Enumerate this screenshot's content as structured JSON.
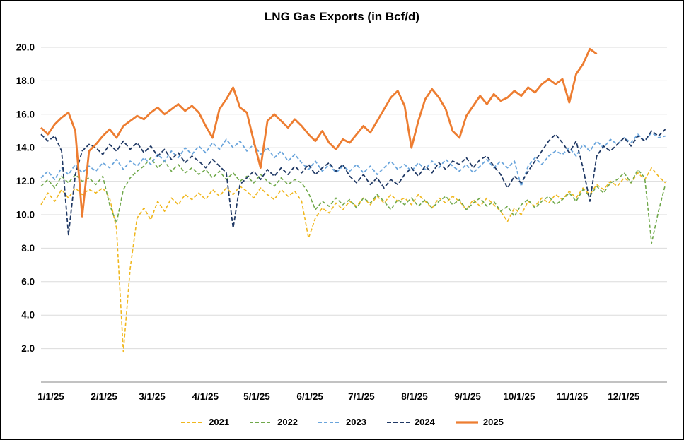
{
  "page": {
    "background": "#ffffff",
    "border_color": "#000000"
  },
  "chart_data": {
    "type": "line",
    "title": "LNG Gas Exports (in Bcf/d)",
    "xlabel": "",
    "ylabel": "",
    "legend_position": "bottom",
    "grid": "horizontal-only",
    "grid_color": "#dbdbdb",
    "axis_color": "#9e9e9e",
    "text_color": "#000000",
    "x_tick_labels": [
      "1/1/25",
      "2/1/25",
      "3/1/25",
      "4/1/25",
      "5/1/25",
      "6/1/25",
      "7/1/25",
      "8/1/25",
      "9/1/25",
      "10/1/25",
      "11/1/25",
      "12/1/25"
    ],
    "x_tick_days": [
      0,
      31,
      59,
      90,
      120,
      151,
      181,
      212,
      243,
      273,
      304,
      334
    ],
    "x_range_days": [
      0,
      365
    ],
    "ylim": [
      0,
      20.8
    ],
    "y_ticks": [
      2,
      4,
      6,
      8,
      10,
      12,
      14,
      16,
      18,
      20
    ],
    "series": [
      {
        "name": "2021",
        "color": "#f0b71e",
        "dash": "5 3",
        "width": 1.6,
        "start_day": 0,
        "step_days": 4,
        "values": [
          10.6,
          11.3,
          10.8,
          11.5,
          11.0,
          11.6,
          11.2,
          11.5,
          11.3,
          11.6,
          11.0,
          9.2,
          1.8,
          6.8,
          9.8,
          10.4,
          9.7,
          10.8,
          10.2,
          11.0,
          10.6,
          11.2,
          10.9,
          11.3,
          10.9,
          11.5,
          11.1,
          11.6,
          11.2,
          11.7,
          11.4,
          11.0,
          11.6,
          11.2,
          10.9,
          11.5,
          11.1,
          11.4,
          10.8,
          8.6,
          9.8,
          10.4,
          10.1,
          10.7,
          10.3,
          10.8,
          10.5,
          11.0,
          10.6,
          11.1,
          10.7,
          11.2,
          10.8,
          11.0,
          10.6,
          11.2,
          10.8,
          10.4,
          11.0,
          10.7,
          11.1,
          10.8,
          10.3,
          10.9,
          10.5,
          11.0,
          10.6,
          10.2,
          9.6,
          10.4,
          10.0,
          10.8,
          10.5,
          11.0,
          10.7,
          11.2,
          10.9,
          11.4,
          11.0,
          11.6,
          11.2,
          11.8,
          11.5,
          12.0,
          11.7,
          12.2,
          11.9,
          12.5,
          12.1,
          12.8,
          12.3,
          11.9
        ]
      },
      {
        "name": "2022",
        "color": "#6fa84a",
        "dash": "5 3",
        "width": 1.6,
        "start_day": 0,
        "step_days": 4,
        "values": [
          11.7,
          12.1,
          11.6,
          12.3,
          11.9,
          12.4,
          12.0,
          12.2,
          11.8,
          12.3,
          10.6,
          9.5,
          11.5,
          12.2,
          12.6,
          12.9,
          13.4,
          12.8,
          13.2,
          12.6,
          13.0,
          12.5,
          12.8,
          12.4,
          12.7,
          12.2,
          12.6,
          12.1,
          12.5,
          12.0,
          12.3,
          11.9,
          12.4,
          12.0,
          11.7,
          12.2,
          11.8,
          12.1,
          11.9,
          11.3,
          10.3,
          10.8,
          10.5,
          11.0,
          10.6,
          10.9,
          10.4,
          11.0,
          10.7,
          11.2,
          10.8,
          10.3,
          10.9,
          10.6,
          11.0,
          10.5,
          10.9,
          10.4,
          10.8,
          11.1,
          10.6,
          10.9,
          10.3,
          10.7,
          11.0,
          10.5,
          10.8,
          10.2,
          10.5,
          9.9,
          10.6,
          10.9,
          10.4,
          10.8,
          11.1,
          10.6,
          10.9,
          11.3,
          10.8,
          11.5,
          11.1,
          11.7,
          11.3,
          11.9,
          12.1,
          12.5,
          11.9,
          12.7,
          12.2,
          8.3,
          10.2,
          11.8
        ]
      },
      {
        "name": "2023",
        "color": "#6aa5dc",
        "dash": "5 3",
        "width": 1.8,
        "start_day": 0,
        "step_days": 4,
        "values": [
          12.2,
          12.6,
          12.1,
          12.8,
          12.4,
          13.0,
          12.5,
          12.9,
          12.6,
          13.1,
          12.8,
          13.3,
          12.7,
          13.2,
          12.9,
          13.4,
          13.0,
          13.6,
          13.2,
          13.8,
          13.4,
          14.0,
          13.6,
          14.1,
          13.7,
          14.3,
          13.9,
          14.5,
          14.0,
          14.4,
          13.8,
          14.2,
          13.6,
          14.0,
          13.4,
          13.8,
          13.2,
          13.6,
          13.1,
          12.7,
          13.2,
          12.6,
          13.0,
          12.5,
          12.9,
          12.6,
          13.0,
          12.5,
          12.9,
          12.4,
          12.8,
          13.2,
          12.7,
          13.0,
          12.6,
          13.1,
          12.7,
          13.2,
          12.8,
          13.3,
          12.9,
          12.6,
          13.0,
          12.5,
          12.9,
          13.3,
          12.8,
          13.2,
          12.8,
          13.2,
          11.7,
          12.9,
          13.4,
          13.0,
          13.5,
          13.8,
          13.6,
          14.0,
          13.5,
          14.2,
          13.8,
          14.4,
          14.0,
          14.5,
          14.2,
          14.6,
          14.3,
          14.8,
          14.4,
          14.9,
          14.6,
          14.7
        ]
      },
      {
        "name": "2024",
        "color": "#1f3864",
        "dash": "6 3",
        "width": 1.8,
        "start_day": 0,
        "step_days": 4,
        "values": [
          14.8,
          14.4,
          14.7,
          13.8,
          8.8,
          12.4,
          13.8,
          14.2,
          14.0,
          13.6,
          14.2,
          13.8,
          14.4,
          13.9,
          14.3,
          13.7,
          14.1,
          13.5,
          13.9,
          13.3,
          13.7,
          13.1,
          13.5,
          13.2,
          12.8,
          13.3,
          12.9,
          12.5,
          9.2,
          11.8,
          12.2,
          12.6,
          12.1,
          12.7,
          12.3,
          12.8,
          12.4,
          12.9,
          12.5,
          13.0,
          12.4,
          12.8,
          13.1,
          12.6,
          13.0,
          12.3,
          11.9,
          12.4,
          11.8,
          12.2,
          11.6,
          12.1,
          11.8,
          12.4,
          12.8,
          12.3,
          12.9,
          12.5,
          13.1,
          12.7,
          13.2,
          13.0,
          13.4,
          12.8,
          13.3,
          13.5,
          12.9,
          12.4,
          11.6,
          12.3,
          11.9,
          12.6,
          13.2,
          13.8,
          14.4,
          14.8,
          14.3,
          13.7,
          14.4,
          12.8,
          10.8,
          13.5,
          14.1,
          13.8,
          14.2,
          14.6,
          14.1,
          14.7,
          14.4,
          15.0,
          14.7,
          15.1
        ]
      },
      {
        "name": "2025",
        "color": "#ed7d31",
        "dash": "",
        "width": 2.8,
        "start_day": 0,
        "step_days": 4,
        "values": [
          15.2,
          14.8,
          15.4,
          15.8,
          16.1,
          15.0,
          9.9,
          13.8,
          14.2,
          14.7,
          15.1,
          14.6,
          15.3,
          15.6,
          15.9,
          15.7,
          16.1,
          16.4,
          16.0,
          16.3,
          16.6,
          16.2,
          16.5,
          16.1,
          15.3,
          14.6,
          16.3,
          16.9,
          17.6,
          16.4,
          16.1,
          14.4,
          12.8,
          15.6,
          16.0,
          15.6,
          15.2,
          15.7,
          15.3,
          14.8,
          14.4,
          15.0,
          14.3,
          13.9,
          14.5,
          14.3,
          14.8,
          15.3,
          14.9,
          15.6,
          16.3,
          17.0,
          17.4,
          16.5,
          14.0,
          15.6,
          16.9,
          17.5,
          17.0,
          16.3,
          15.0,
          14.6,
          15.9,
          16.5,
          17.1,
          16.6,
          17.2,
          16.8,
          17.0,
          17.4,
          17.1,
          17.6,
          17.3,
          17.8,
          18.1,
          17.8,
          18.1,
          16.7,
          18.4,
          19.0,
          19.9,
          19.6
        ]
      }
    ]
  }
}
